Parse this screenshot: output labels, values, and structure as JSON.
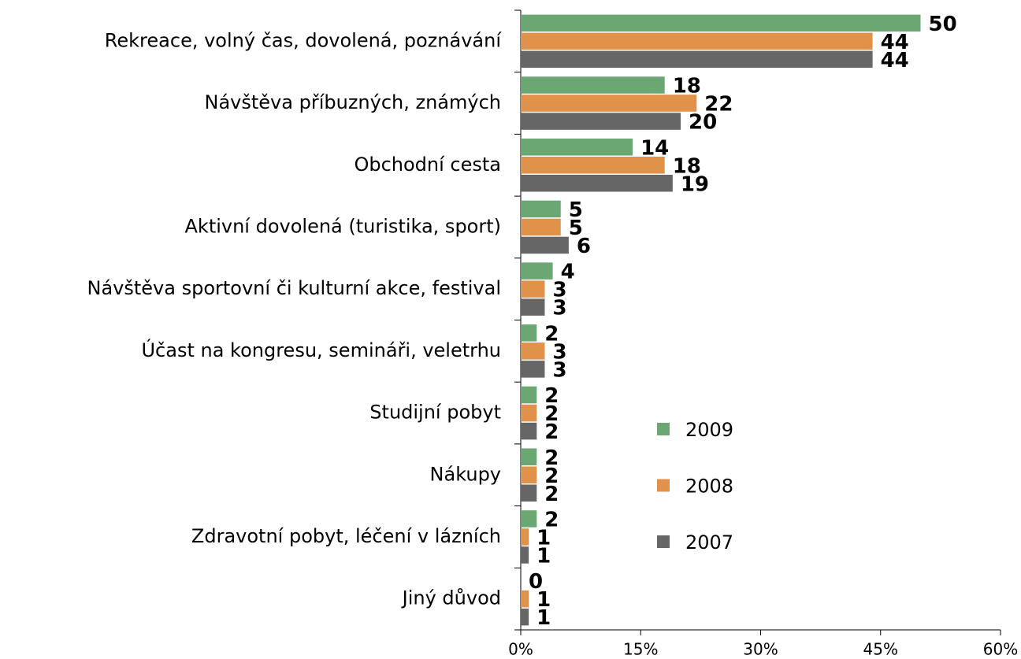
{
  "chart_data": {
    "type": "hbar",
    "categories": [
      "Rekreace, volný čas, dovolená, poznávání",
      "Návštěva příbuzných, známých",
      "Obchodní cesta",
      "Aktivní dovolená (turistika, sport)",
      "Návštěva sportovní či kulturní akce, festival",
      "Účast na kongresu, semináři, veletrhu",
      "Studijní pobyt",
      "Nákupy",
      "Zdravotní pobyt, léčení v lázních",
      "Jiný důvod"
    ],
    "series": [
      {
        "name": "2009",
        "color": "#6ba773",
        "values": [
          50,
          18,
          14,
          5,
          4,
          2,
          2,
          2,
          2,
          0
        ]
      },
      {
        "name": "2008",
        "color": "#e0914a",
        "values": [
          44,
          22,
          18,
          5,
          3,
          3,
          2,
          2,
          1,
          1
        ]
      },
      {
        "name": "2007",
        "color": "#666666",
        "values": [
          44,
          20,
          19,
          6,
          3,
          3,
          2,
          2,
          1,
          1
        ]
      }
    ],
    "xlim": [
      0,
      60
    ],
    "xticks": [
      {
        "value": 0,
        "label": "0%"
      },
      {
        "value": 15,
        "label": "15%"
      },
      {
        "value": 30,
        "label": "30%"
      },
      {
        "value": 45,
        "label": "45%"
      },
      {
        "value": 60,
        "label": "60%"
      }
    ]
  }
}
